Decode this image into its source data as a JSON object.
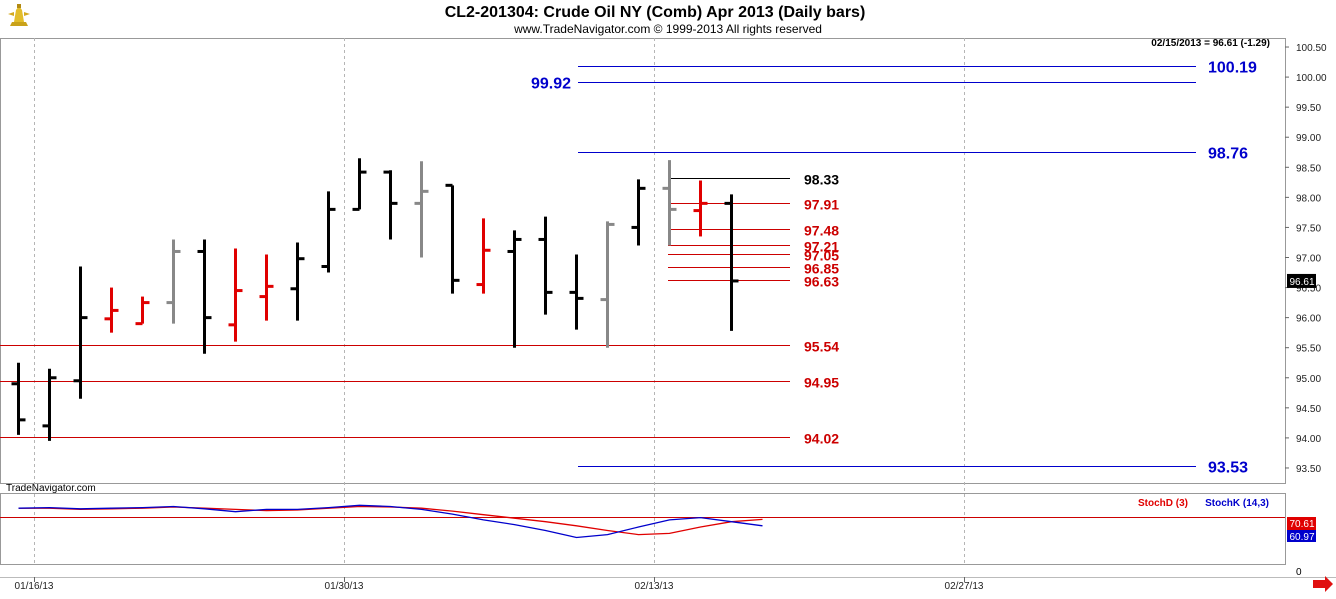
{
  "header": {
    "title": "CL2-201304:  Crude Oil NY (Comb) Apr 2013  (Daily bars)",
    "copyright": "www.TradeNavigator.com © 1999-2013 All rights reserved",
    "last_bar_info": "02/15/2013 = 96.61 (-1.29)",
    "watermark": "TradeNavigator.com",
    "logo": "trade-navigator-logo"
  },
  "colors": {
    "black": "#000000",
    "gray": "#888888",
    "red": "#e00000",
    "blue": "#0000cc",
    "hline_red": "#cc0000",
    "hline_black": "#000000",
    "arrow": "#e01010"
  },
  "chart_data": [
    {
      "type": "ohlc",
      "ylim": [
        93.25,
        100.65
      ],
      "yticks": [
        "100.50",
        "100.00",
        "99.50",
        "99.00",
        "98.50",
        "98.00",
        "97.50",
        "97.00",
        "96.50",
        "96.00",
        "95.50",
        "95.00",
        "94.50",
        "94.00",
        "93.50"
      ],
      "x_dates": [
        "01/16/13",
        "01/30/13",
        "02/13/13",
        "02/27/13"
      ],
      "last_price_label": "96.61",
      "bars": [
        {
          "o": 94.9,
          "h": 95.25,
          "l": 94.05,
          "c": 94.3,
          "color": "black"
        },
        {
          "o": 94.2,
          "h": 95.15,
          "l": 93.95,
          "c": 95.0,
          "color": "black"
        },
        {
          "o": 94.95,
          "h": 96.85,
          "l": 94.65,
          "c": 96.0,
          "color": "black"
        },
        {
          "o": 95.98,
          "h": 96.5,
          "l": 95.75,
          "c": 96.12,
          "color": "red"
        },
        {
          "o": 95.9,
          "h": 96.35,
          "l": 95.9,
          "c": 96.25,
          "color": "red"
        },
        {
          "o": 96.25,
          "h": 97.3,
          "l": 95.9,
          "c": 97.1,
          "color": "gray"
        },
        {
          "o": 97.1,
          "h": 97.3,
          "l": 95.4,
          "c": 96.0,
          "color": "black"
        },
        {
          "o": 95.88,
          "h": 97.15,
          "l": 95.6,
          "c": 96.45,
          "color": "red"
        },
        {
          "o": 96.35,
          "h": 97.05,
          "l": 95.95,
          "c": 96.52,
          "color": "red"
        },
        {
          "o": 96.48,
          "h": 97.25,
          "l": 95.95,
          "c": 96.98,
          "color": "black"
        },
        {
          "o": 96.85,
          "h": 98.1,
          "l": 96.75,
          "c": 97.8,
          "color": "black"
        },
        {
          "o": 97.8,
          "h": 98.65,
          "l": 97.8,
          "c": 98.42,
          "color": "black"
        },
        {
          "o": 98.42,
          "h": 98.45,
          "l": 97.3,
          "c": 97.9,
          "color": "black"
        },
        {
          "o": 97.9,
          "h": 98.6,
          "l": 97.0,
          "c": 98.1,
          "color": "gray"
        },
        {
          "o": 98.2,
          "h": 98.2,
          "l": 96.4,
          "c": 96.62,
          "color": "black"
        },
        {
          "o": 96.55,
          "h": 97.65,
          "l": 96.4,
          "c": 97.12,
          "color": "red"
        },
        {
          "o": 97.1,
          "h": 97.45,
          "l": 95.5,
          "c": 97.3,
          "color": "black"
        },
        {
          "o": 97.3,
          "h": 97.68,
          "l": 96.05,
          "c": 96.42,
          "color": "black"
        },
        {
          "o": 96.42,
          "h": 97.05,
          "l": 95.8,
          "c": 96.32,
          "color": "black"
        },
        {
          "o": 96.3,
          "h": 97.6,
          "l": 95.5,
          "c": 97.55,
          "color": "gray"
        },
        {
          "o": 97.5,
          "h": 98.3,
          "l": 97.2,
          "c": 98.15,
          "color": "black"
        },
        {
          "o": 98.15,
          "h": 98.62,
          "l": 97.2,
          "c": 97.8,
          "color": "gray"
        },
        {
          "o": 97.78,
          "h": 98.28,
          "l": 97.35,
          "c": 97.9,
          "color": "red"
        },
        {
          "o": 97.9,
          "h": 98.05,
          "l": 95.78,
          "c": 96.61,
          "color": "black"
        }
      ],
      "levels": [
        {
          "label": "100.19",
          "value": 100.19,
          "color": "blue",
          "side": "right-big"
        },
        {
          "label": "99.92",
          "value": 99.92,
          "color": "blue",
          "side": "left-big"
        },
        {
          "label": "98.76",
          "value": 98.76,
          "color": "blue",
          "side": "right-big"
        },
        {
          "label": "98.33",
          "value": 98.33,
          "color": "black",
          "side": "mid"
        },
        {
          "label": "97.91",
          "value": 97.91,
          "color": "red",
          "side": "mid"
        },
        {
          "label": "97.48",
          "value": 97.48,
          "color": "red",
          "side": "mid"
        },
        {
          "label": "97.21",
          "value": 97.21,
          "color": "red",
          "side": "mid"
        },
        {
          "label": "97.05",
          "value": 97.05,
          "color": "red",
          "side": "mid"
        },
        {
          "label": "96.85",
          "value": 96.85,
          "color": "red",
          "side": "mid"
        },
        {
          "label": "96.63",
          "value": 96.63,
          "color": "red",
          "side": "mid"
        },
        {
          "label": "95.54",
          "value": 95.54,
          "color": "red",
          "side": "full"
        },
        {
          "label": "94.95",
          "value": 94.95,
          "color": "red",
          "side": "full"
        },
        {
          "label": "94.02",
          "value": 94.02,
          "color": "red",
          "side": "full"
        },
        {
          "label": "93.53",
          "value": 93.53,
          "color": "blue",
          "side": "right-big"
        }
      ]
    },
    {
      "type": "line",
      "ylim": [
        0,
        100
      ],
      "y_bottom_label": "0",
      "series": [
        {
          "name": "StochD (3)",
          "color": "red",
          "last_label": "70.61",
          "values": [
            90,
            90,
            88,
            89,
            90,
            92,
            90,
            88,
            86,
            87,
            90,
            93,
            92,
            90,
            85,
            79,
            73,
            67,
            60,
            52,
            45,
            47,
            58,
            67,
            71
          ]
        },
        {
          "name": "StochK (14,3)",
          "color": "blue",
          "last_label": "60.97",
          "values": [
            90,
            91,
            89,
            90,
            91,
            93,
            89,
            84,
            88,
            88,
            91,
            95,
            93,
            88,
            80,
            70,
            62,
            52,
            40,
            45,
            58,
            70,
            74,
            67,
            60
          ]
        }
      ]
    }
  ]
}
